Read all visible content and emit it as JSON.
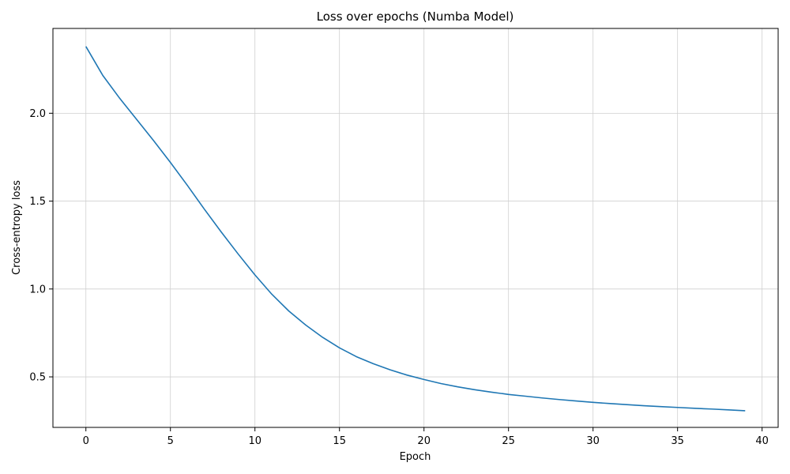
{
  "chart_data": {
    "type": "line",
    "title": "Loss over epochs (Numba Model)",
    "xlabel": "Epoch",
    "ylabel": "Cross-entropy loss",
    "xlim": [
      -1.95,
      40.95
    ],
    "ylim": [
      0.2125,
      2.4825
    ],
    "xticks": [
      0,
      5,
      10,
      15,
      20,
      25,
      30,
      35,
      40
    ],
    "yticks": [
      0.5,
      1.0,
      1.5,
      2.0
    ],
    "xtick_labels": [
      "0",
      "5",
      "10",
      "15",
      "20",
      "25",
      "30",
      "35",
      "40"
    ],
    "ytick_labels": [
      "0.5",
      "1.0",
      "1.5",
      "2.0"
    ],
    "grid": true,
    "series": [
      {
        "color": "#1f77b4",
        "x": [
          0,
          1,
          2,
          3,
          4,
          5,
          6,
          7,
          8,
          9,
          10,
          11,
          12,
          13,
          14,
          15,
          16,
          17,
          18,
          19,
          20,
          21,
          22,
          23,
          24,
          25,
          26,
          27,
          28,
          29,
          30,
          31,
          32,
          33,
          34,
          35,
          36,
          37,
          38,
          39
        ],
        "y": [
          2.38,
          2.215,
          2.085,
          1.965,
          1.845,
          1.72,
          1.59,
          1.455,
          1.325,
          1.2,
          1.08,
          0.97,
          0.875,
          0.795,
          0.725,
          0.665,
          0.615,
          0.575,
          0.54,
          0.51,
          0.485,
          0.462,
          0.443,
          0.427,
          0.413,
          0.4,
          0.39,
          0.38,
          0.371,
          0.363,
          0.355,
          0.348,
          0.342,
          0.336,
          0.331,
          0.326,
          0.321,
          0.317,
          0.312,
          0.307
        ]
      }
    ]
  }
}
